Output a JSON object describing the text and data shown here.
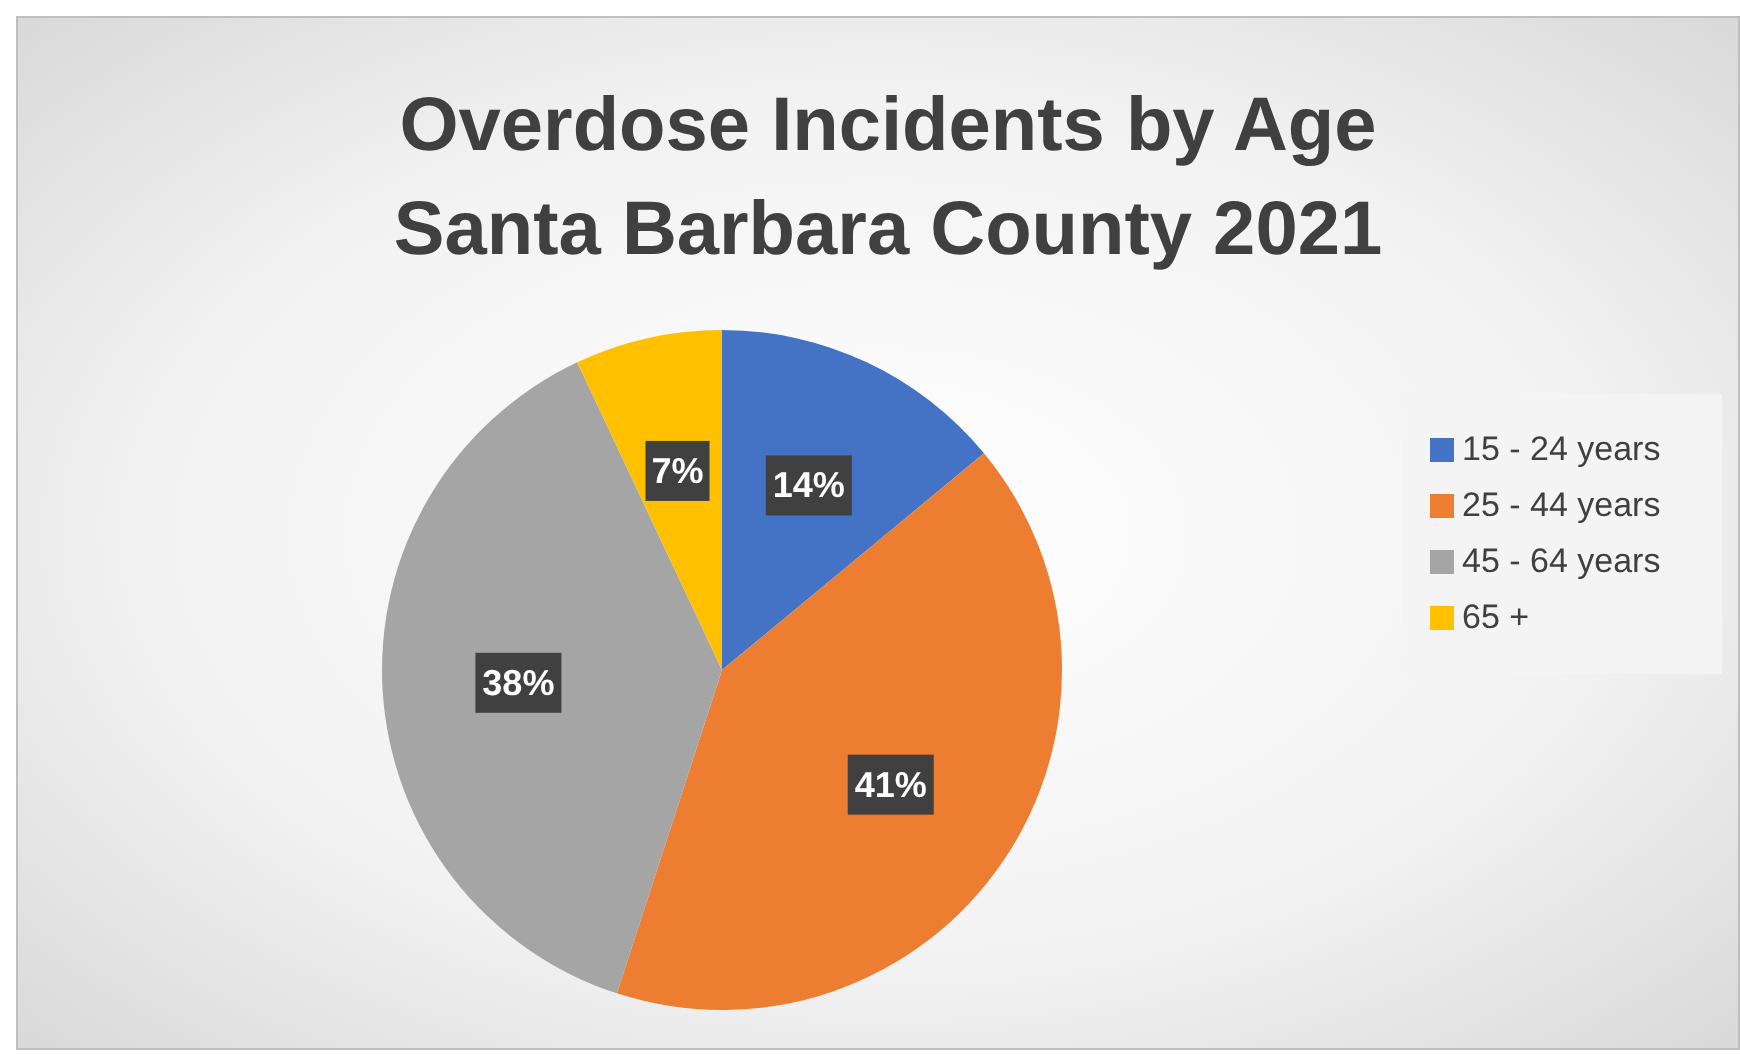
{
  "chart_data": {
    "type": "pie",
    "title": "Overdose Incidents by Age Santa Barbara County 2021",
    "categories": [
      "15 - 24 years",
      "25 - 44 years",
      "45 - 64 years",
      "65 +"
    ],
    "values": [
      14,
      41,
      38,
      7
    ],
    "colors": [
      "#4472c4",
      "#ed7d31",
      "#a5a5a5",
      "#ffc000"
    ],
    "value_labels": [
      "14%",
      "41%",
      "38%",
      "7%"
    ],
    "legend": "right"
  }
}
